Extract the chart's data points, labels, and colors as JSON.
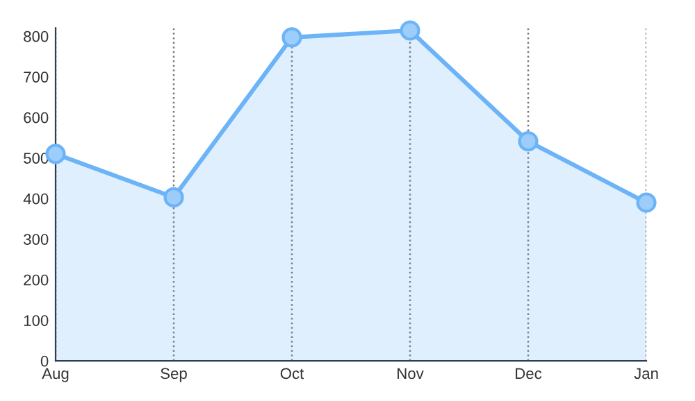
{
  "chart_data": {
    "type": "area",
    "categories": [
      "Aug",
      "Sep",
      "Oct",
      "Nov",
      "Dec",
      "Jan"
    ],
    "series": [
      {
        "color": "#6cb4f7",
        "values": [
          510,
          403,
          797,
          814,
          541,
          390
        ]
      }
    ],
    "ylim": [
      0,
      820
    ],
    "yticks": [
      0,
      100,
      200,
      300,
      400,
      500,
      600,
      700,
      800
    ],
    "grid": "x",
    "marker": "circle",
    "line_style": "solid"
  }
}
